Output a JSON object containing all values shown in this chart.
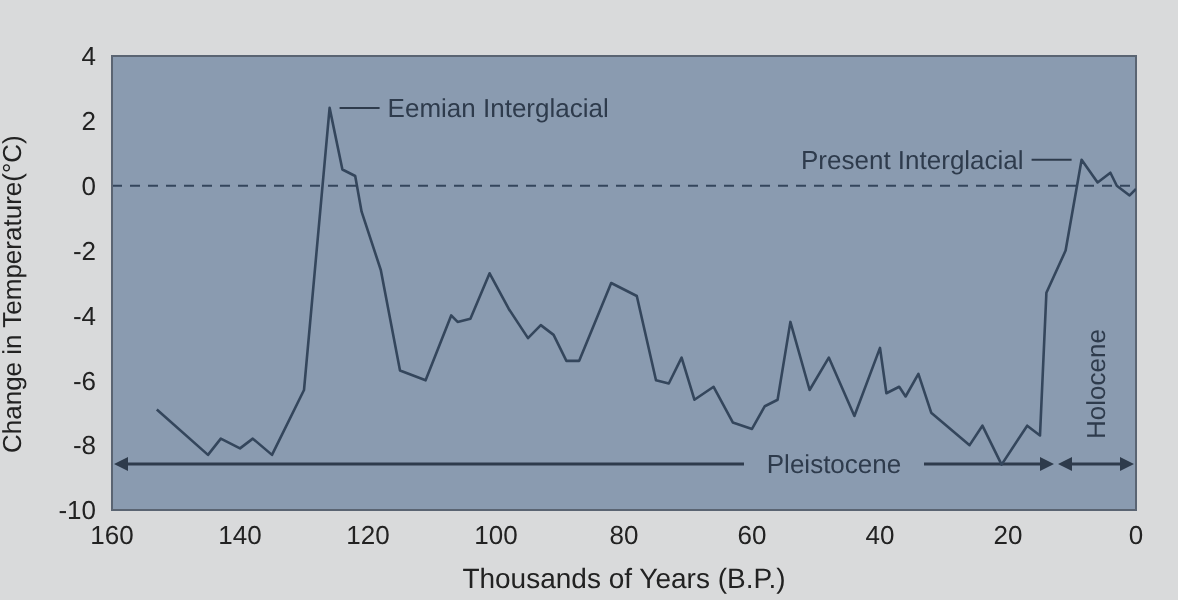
{
  "chart_data": {
    "type": "line",
    "xlabel": "Thousands of Years (B.P.)",
    "ylabel": "Change in Temperature(°C)",
    "x": [
      153,
      145,
      143,
      140,
      138,
      135,
      130,
      126,
      124,
      122,
      121,
      118,
      115,
      111,
      107,
      106,
      104,
      101,
      98,
      95,
      93,
      91,
      89,
      87,
      82,
      78,
      75,
      73,
      71,
      69,
      66,
      63,
      60,
      58,
      56,
      54,
      51,
      48,
      44,
      40,
      39,
      37,
      36,
      34,
      32,
      26,
      24,
      21,
      17,
      15,
      14,
      11,
      8.5,
      6,
      4,
      3,
      1,
      0
    ],
    "series": [
      {
        "color": "#34465c",
        "values": [
          -6.9,
          -8.3,
          -7.8,
          -8.1,
          -7.8,
          -8.3,
          -6.3,
          2.4,
          0.5,
          0.3,
          -0.8,
          -2.6,
          -5.7,
          -6,
          -4,
          -4.2,
          -4.1,
          -2.7,
          -3.8,
          -4.7,
          -4.3,
          -4.6,
          -5.4,
          -5.4,
          -3,
          -3.4,
          -6,
          -6.1,
          -5.3,
          -6.6,
          -6.2,
          -7.3,
          -7.5,
          -6.8,
          -6.6,
          -4.2,
          -6.3,
          -5.3,
          -7.1,
          -5,
          -6.4,
          -6.2,
          -6.5,
          -5.8,
          -7,
          -8,
          -7.4,
          -8.6,
          -7.4,
          -7.7,
          -3.3,
          -2,
          0.8,
          0.1,
          0.4,
          0,
          -0.3,
          -0.1
        ]
      }
    ],
    "xlim": [
      160,
      0
    ],
    "xticks": [
      160,
      140,
      120,
      100,
      80,
      60,
      40,
      20,
      0
    ],
    "ylim": [
      -10,
      4
    ],
    "yticks": [
      -10,
      -8,
      -6,
      -4,
      -2,
      0,
      2,
      4
    ],
    "marker": "none",
    "line_style": "solid",
    "ref_lines": [
      {
        "axis": "y",
        "value": 0,
        "line_style": "dashed",
        "color": "#34465c"
      }
    ],
    "annotations": [
      {
        "text": "Eemian Interglacial",
        "x": 126,
        "y": 2.4
      },
      {
        "text": "Present Interglacial",
        "x": 8.5,
        "y": 0.8
      },
      "Pleistocene",
      "Holocene"
    ]
  }
}
